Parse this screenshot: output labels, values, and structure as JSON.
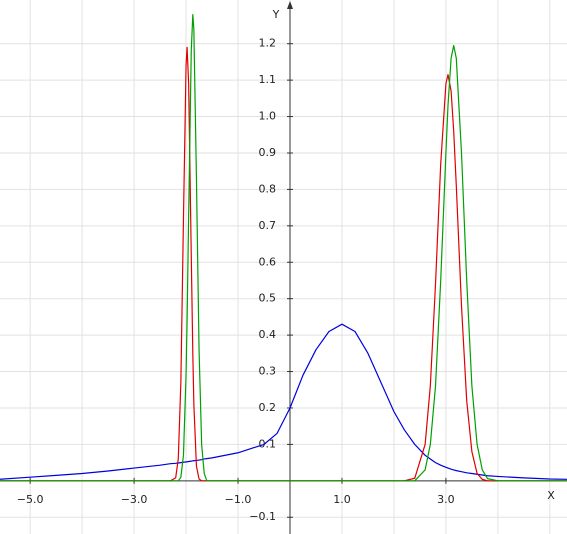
{
  "chart_data": {
    "type": "line",
    "xlabel": "X",
    "ylabel": "Y",
    "xlim": [
      -5.58,
      5.33
    ],
    "ylim": [
      -0.146,
      1.32
    ],
    "grid": true,
    "xticks": [
      {
        "value": -5,
        "label": "−5.0"
      },
      {
        "value": -3,
        "label": "−3.0"
      },
      {
        "value": -1,
        "label": "−1.0"
      },
      {
        "value": 1,
        "label": "1.0"
      },
      {
        "value": 3,
        "label": "3.0"
      }
    ],
    "yticks": [
      {
        "value": -0.1,
        "label": "−0.1"
      },
      0.1,
      0.2,
      0.3,
      0.4,
      0.5,
      0.6,
      0.7,
      0.8,
      0.9,
      {
        "value": 1,
        "label": "1.0"
      },
      1.1,
      1.2
    ],
    "x": [
      -5.6,
      -5,
      -4.5,
      -4,
      -3.5,
      -3,
      -2.5,
      -2.4,
      -2.3,
      -2.2,
      -2.15,
      -2.1,
      -2.05,
      -2.0,
      -1.98,
      -1.95,
      -1.9,
      -1.87,
      -1.85,
      -1.8,
      -1.75,
      -1.7,
      -1.65,
      -1.6,
      -1.5,
      -1,
      -0.5,
      -0.25,
      0,
      0.25,
      0.5,
      0.75,
      1,
      1.25,
      1.5,
      1.75,
      2,
      2.2,
      2.4,
      2.6,
      2.7,
      2.8,
      2.9,
      3.0,
      3.04,
      3.1,
      3.15,
      3.2,
      3.3,
      3.4,
      3.5,
      3.6,
      3.7,
      3.8,
      4.0,
      4.5,
      5,
      5.4
    ],
    "series": [
      {
        "color": "#0000e0",
        "values": [
          0.004,
          0.01,
          0.015,
          0.02,
          0.027,
          0.035,
          0.043,
          0.045,
          0.047,
          0.048,
          0.049,
          0.05,
          0.051,
          0.052,
          0.052,
          0.053,
          0.054,
          0.055,
          0.055,
          0.056,
          0.057,
          0.058,
          0.06,
          0.061,
          0.063,
          0.077,
          0.1,
          0.13,
          0.2,
          0.29,
          0.36,
          0.41,
          0.43,
          0.41,
          0.35,
          0.27,
          0.19,
          0.14,
          0.1,
          0.07,
          0.06,
          0.05,
          0.043,
          0.037,
          0.035,
          0.032,
          0.03,
          0.028,
          0.025,
          0.022,
          0.02,
          0.018,
          0.016,
          0.014,
          0.012,
          0.008,
          0.005,
          0.004
        ]
      },
      {
        "color": "#e00000",
        "values": [
          0,
          0,
          0,
          0,
          0,
          0,
          0,
          0,
          0,
          0.008,
          0.06,
          0.27,
          0.72,
          1.14,
          1.19,
          1.09,
          0.62,
          0.35,
          0.21,
          0.04,
          0.005,
          0,
          0,
          0,
          0,
          0,
          0,
          0,
          0,
          0,
          0,
          0,
          0,
          0,
          0,
          0,
          0,
          0,
          0.007,
          0.1,
          0.26,
          0.54,
          0.87,
          1.09,
          1.115,
          1.07,
          0.96,
          0.81,
          0.48,
          0.22,
          0.08,
          0.02,
          0.004,
          0,
          0,
          0,
          0,
          0
        ]
      },
      {
        "color": "#00a000",
        "values": [
          0,
          0,
          0,
          0,
          0,
          0,
          0,
          0,
          0,
          0,
          0,
          0.01,
          0.07,
          0.29,
          0.44,
          0.73,
          1.18,
          1.28,
          1.24,
          0.83,
          0.36,
          0.1,
          0.02,
          0,
          0,
          0,
          0,
          0,
          0,
          0,
          0,
          0,
          0,
          0,
          0,
          0,
          0,
          0,
          0,
          0.03,
          0.1,
          0.26,
          0.55,
          0.9,
          1.03,
          1.16,
          1.195,
          1.16,
          0.9,
          0.55,
          0.26,
          0.1,
          0.03,
          0.006,
          0,
          0,
          0,
          0
        ]
      }
    ]
  }
}
